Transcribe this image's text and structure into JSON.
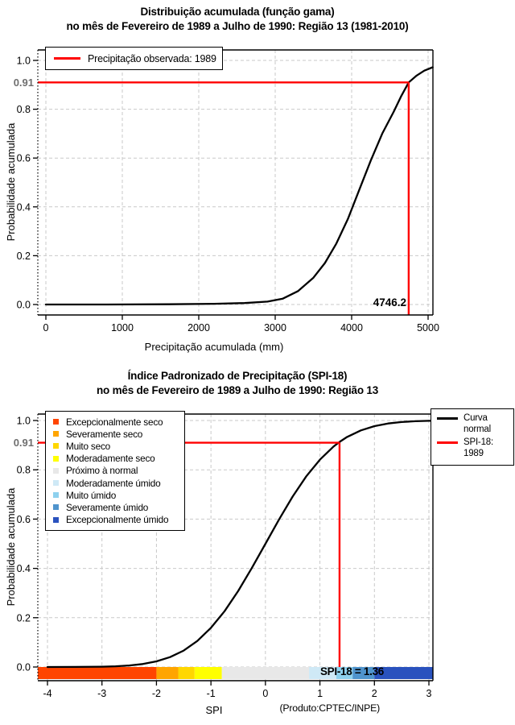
{
  "page_bg": "#ffffff",
  "colors": {
    "marker_red": "#ff0000",
    "curve_black": "#000000",
    "grid_gray": "#c9c9c9",
    "muted_label_gray": "#6f6f6f"
  },
  "chart_data": [
    {
      "type": "line",
      "title": "Distribuição acumulada (função gama)",
      "title_line2": "no mês de Fevereiro de 1989 a Julho de 1990: Região 13 (1981-2010)",
      "xlabel": "Precipitação acumulada (mm)",
      "ylabel": "Probabilidade acumulada",
      "xlim": [
        0,
        5000
      ],
      "ylim": [
        0,
        1
      ],
      "grid": true,
      "x_tick_values": [
        0,
        1000,
        2000,
        3000,
        4000,
        5000
      ],
      "x_tick_labels": [
        "0",
        "1000",
        "2000",
        "3000",
        "4000",
        "5000"
      ],
      "y_tick_values": [
        0,
        0.2,
        0.4,
        0.6,
        0.8,
        1.0
      ],
      "y_tick_labels": [
        "0.0",
        "0.2",
        "0.4",
        "0.6",
        "0.8",
        "1.0"
      ],
      "legend": {
        "position": "top-left",
        "entries": [
          {
            "label": "Precipitação observada: 1989",
            "color": "#ff0000"
          }
        ]
      },
      "series": [
        {
          "name": "Distribuição acumulada (função gama)",
          "color": "#000000",
          "points": [
            [
              0,
              0.0
            ],
            [
              800,
              0.0
            ],
            [
              1600,
              0.001
            ],
            [
              2200,
              0.003
            ],
            [
              2600,
              0.006
            ],
            [
              2900,
              0.012
            ],
            [
              3100,
              0.024
            ],
            [
              3300,
              0.055
            ],
            [
              3500,
              0.11
            ],
            [
              3650,
              0.17
            ],
            [
              3800,
              0.25
            ],
            [
              3950,
              0.35
            ],
            [
              4100,
              0.47
            ],
            [
              4250,
              0.59
            ],
            [
              4400,
              0.7
            ],
            [
              4550,
              0.79
            ],
            [
              4650,
              0.855
            ],
            [
              4746.2,
              0.91
            ],
            [
              4850,
              0.938
            ],
            [
              4950,
              0.958
            ],
            [
              5060,
              0.972
            ]
          ]
        }
      ],
      "marker": {
        "x": 4746.2,
        "y": 0.91,
        "x_label": "4746.2",
        "y_label": "0.91",
        "color": "#ff0000"
      }
    },
    {
      "type": "line",
      "title": "Índice Padronizado de Precipitação (SPI-18)",
      "title_line2": "no mês de Fevereiro de 1989 a Julho de 1990: Região 13",
      "xlabel": "SPI",
      "ylabel": "Probabilidade acumulada",
      "footer": "(Produto:CPTEC/INPE)",
      "xlim": [
        -4,
        3
      ],
      "ylim": [
        0,
        1
      ],
      "grid": true,
      "x_tick_values": [
        -4,
        -3,
        -2,
        -1,
        0,
        1,
        2,
        3
      ],
      "x_tick_labels": [
        "-4",
        "-3",
        "-2",
        "-1",
        "0",
        "1",
        "2",
        "3"
      ],
      "y_tick_values": [
        0,
        0.2,
        0.4,
        0.6,
        0.8,
        1.0
      ],
      "y_tick_labels": [
        "0.0",
        "0.2",
        "0.4",
        "0.6",
        "0.8",
        "1.0"
      ],
      "category_legend": [
        {
          "label": "Excepcionalmente seco",
          "color": "#ff4500"
        },
        {
          "label": "Severamente seco",
          "color": "#ffa500"
        },
        {
          "label": "Muito seco",
          "color": "#ffd700"
        },
        {
          "label": "Moderadamente seco",
          "color": "#ffff00"
        },
        {
          "label": "Próximo à normal",
          "color": "#e8e8e8"
        },
        {
          "label": "Moderadamente úmido",
          "color": "#cfe9f6"
        },
        {
          "label": "Muito úmido",
          "color": "#8ed1ee"
        },
        {
          "label": "Severamente úmido",
          "color": "#4f94cd"
        },
        {
          "label": "Excepcionalmente úmido",
          "color": "#2a52be"
        }
      ],
      "legend_right": {
        "position": "top-right",
        "entries": [
          {
            "label": "Curva normal",
            "color": "#000000"
          },
          {
            "label": "SPI-18: 1989",
            "color": "#ff0000"
          }
        ]
      },
      "series": [
        {
          "name": "Curva normal",
          "color": "#000000",
          "points": [
            [
              -4,
              3e-05
            ],
            [
              -3.5,
              0.0002
            ],
            [
              -3,
              0.0013
            ],
            [
              -2.75,
              0.003
            ],
            [
              -2.5,
              0.0062
            ],
            [
              -2.25,
              0.0122
            ],
            [
              -2,
              0.0228
            ],
            [
              -1.75,
              0.0401
            ],
            [
              -1.5,
              0.0668
            ],
            [
              -1.25,
              0.1056
            ],
            [
              -1,
              0.1587
            ],
            [
              -0.75,
              0.2266
            ],
            [
              -0.5,
              0.3085
            ],
            [
              -0.25,
              0.4013
            ],
            [
              0,
              0.5
            ],
            [
              0.25,
              0.5987
            ],
            [
              0.5,
              0.6915
            ],
            [
              0.75,
              0.7734
            ],
            [
              1,
              0.8413
            ],
            [
              1.25,
              0.8944
            ],
            [
              1.36,
              0.9131
            ],
            [
              1.5,
              0.9332
            ],
            [
              1.75,
              0.9599
            ],
            [
              2,
              0.9772
            ],
            [
              2.25,
              0.9878
            ],
            [
              2.5,
              0.9938
            ],
            [
              2.75,
              0.997
            ],
            [
              3,
              0.9987
            ],
            [
              3.07,
              0.9988
            ]
          ]
        }
      ],
      "marker": {
        "x": 1.36,
        "y": 0.91,
        "y_label": "0.91",
        "color": "#ff0000"
      },
      "bar_label": "SPI-18 = 1.36",
      "bar_segments": [
        {
          "from": -4.18,
          "to": -2.0,
          "color": "#ff4500",
          "category": "Excepcionalmente seco"
        },
        {
          "from": -2.0,
          "to": -1.6,
          "color": "#ffa500",
          "category": "Severamente seco"
        },
        {
          "from": -1.6,
          "to": -1.3,
          "color": "#ffd700",
          "category": "Muito seco"
        },
        {
          "from": -1.3,
          "to": -0.8,
          "color": "#ffff00",
          "category": "Moderadamente seco"
        },
        {
          "from": -0.8,
          "to": 0.8,
          "color": "#e8e8e8",
          "category": "Próximo à normal"
        },
        {
          "from": 0.8,
          "to": 1.3,
          "color": "#cfe9f6",
          "category": "Moderadamente úmido"
        },
        {
          "from": 1.3,
          "to": 1.6,
          "color": "#8ed1ee",
          "category": "Muito úmido"
        },
        {
          "from": 1.6,
          "to": 2.0,
          "color": "#4f94cd",
          "category": "Severamente úmido"
        },
        {
          "from": 2.0,
          "to": 3.07,
          "color": "#2a52be",
          "category": "Excepcionalmente úmido"
        }
      ]
    }
  ]
}
